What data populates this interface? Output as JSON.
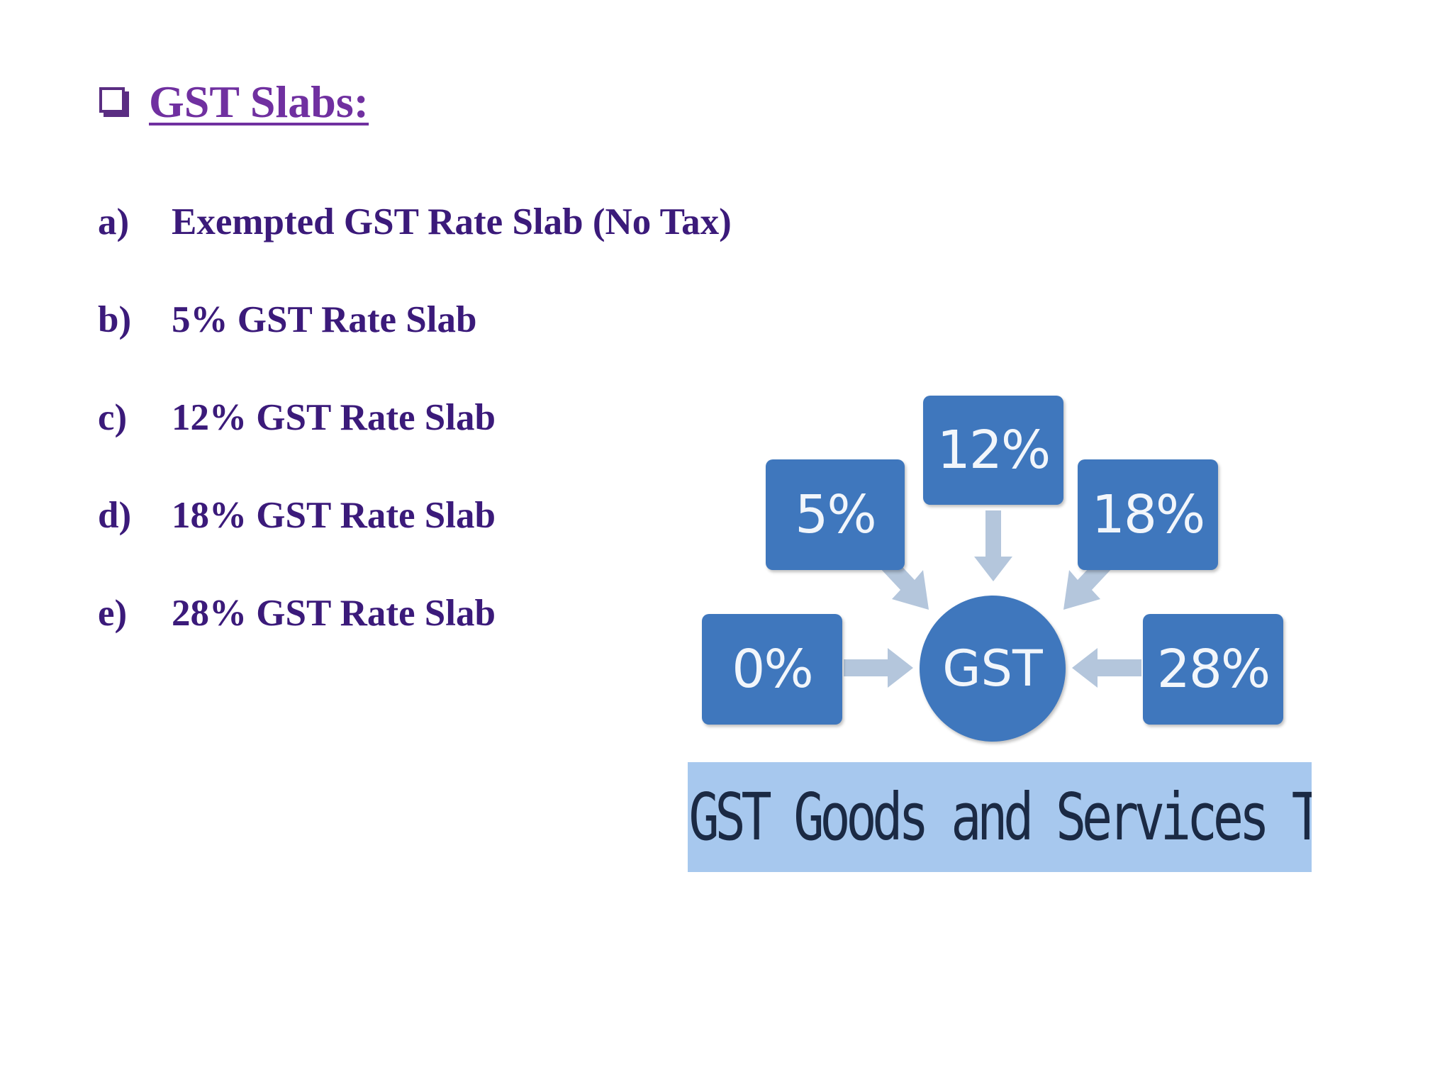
{
  "slide": {
    "heading": "GST Slabs:",
    "items": [
      {
        "marker": "a)",
        "label": "Exempted GST Rate Slab (No Tax)"
      },
      {
        "marker": "b)",
        "label": "5% GST Rate Slab"
      },
      {
        "marker": "c)",
        "label": "12% GST Rate Slab"
      },
      {
        "marker": "d)",
        "label": "18% GST Rate Slab"
      },
      {
        "marker": "e)",
        "label": "28% GST Rate Slab"
      }
    ]
  },
  "diagram": {
    "center": "GST",
    "rates": {
      "r12": "12%",
      "r5": "5%",
      "r18": "18%",
      "r0": "0%",
      "r28": "28%"
    },
    "caption": "GST Goods and Services Tax"
  },
  "colors": {
    "heading": "#7030a0",
    "list_text": "#3b1a7a",
    "box_fill": "#3f77bd",
    "arrow_fill": "#b4c6dc",
    "caption_band": "#a7c8ee"
  }
}
